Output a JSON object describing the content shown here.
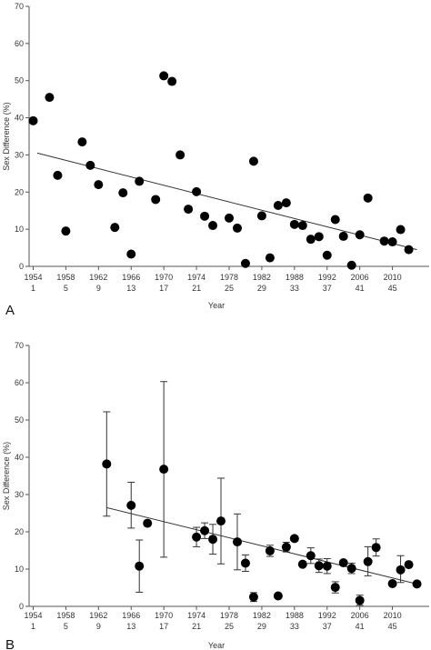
{
  "chart_data": [
    {
      "type": "scatter",
      "panel_label": "A",
      "xlabel": "Year",
      "ylabel": "Sex Difference (%)",
      "ylim": [
        0,
        70
      ],
      "yticks": [
        0,
        10,
        20,
        30,
        40,
        50,
        60,
        70
      ],
      "xlim": [
        0.5,
        49.5
      ],
      "xticks": [
        {
          "x": 1,
          "year": "1954",
          "index": "1"
        },
        {
          "x": 5,
          "year": "1958",
          "index": "5"
        },
        {
          "x": 9,
          "year": "1962",
          "index": "9"
        },
        {
          "x": 13,
          "year": "1966",
          "index": "13"
        },
        {
          "x": 17,
          "year": "1970",
          "index": "17"
        },
        {
          "x": 21,
          "year": "1974",
          "index": "21"
        },
        {
          "x": 25,
          "year": "1978",
          "index": "25"
        },
        {
          "x": 29,
          "year": "1982",
          "index": "29"
        },
        {
          "x": 33,
          "year": "1988",
          "index": "33"
        },
        {
          "x": 37,
          "year": "1992",
          "index": "37"
        },
        {
          "x": 41,
          "year": "2006",
          "index": "41"
        },
        {
          "x": 45,
          "year": "2010",
          "index": "45"
        }
      ],
      "points": [
        {
          "x": 1,
          "y": 39.2
        },
        {
          "x": 3,
          "y": 45.5
        },
        {
          "x": 4,
          "y": 24.5
        },
        {
          "x": 5,
          "y": 9.5
        },
        {
          "x": 7,
          "y": 33.5
        },
        {
          "x": 8,
          "y": 27.2
        },
        {
          "x": 9,
          "y": 22
        },
        {
          "x": 11,
          "y": 10.5
        },
        {
          "x": 12,
          "y": 19.8
        },
        {
          "x": 13,
          "y": 3.3
        },
        {
          "x": 14,
          "y": 22.9
        },
        {
          "x": 16,
          "y": 18
        },
        {
          "x": 17,
          "y": 51.3
        },
        {
          "x": 18,
          "y": 49.8
        },
        {
          "x": 19,
          "y": 30
        },
        {
          "x": 20,
          "y": 15.4
        },
        {
          "x": 21,
          "y": 20.1
        },
        {
          "x": 22,
          "y": 13.5
        },
        {
          "x": 23,
          "y": 11
        },
        {
          "x": 25,
          "y": 13
        },
        {
          "x": 26,
          "y": 10.3
        },
        {
          "x": 27,
          "y": 0.8
        },
        {
          "x": 28,
          "y": 28.3
        },
        {
          "x": 29,
          "y": 13.6
        },
        {
          "x": 30,
          "y": 2.3
        },
        {
          "x": 31,
          "y": 16.4
        },
        {
          "x": 32,
          "y": 17.1
        },
        {
          "x": 33,
          "y": 11.3
        },
        {
          "x": 34,
          "y": 11
        },
        {
          "x": 35,
          "y": 7.3
        },
        {
          "x": 36,
          "y": 8
        },
        {
          "x": 37,
          "y": 3
        },
        {
          "x": 38,
          "y": 12.6
        },
        {
          "x": 39,
          "y": 8.1
        },
        {
          "x": 40,
          "y": 0.3
        },
        {
          "x": 41,
          "y": 8.5
        },
        {
          "x": 42,
          "y": 18.4
        },
        {
          "x": 44,
          "y": 6.8
        },
        {
          "x": 45,
          "y": 6.6
        },
        {
          "x": 46,
          "y": 9.9
        },
        {
          "x": 47,
          "y": 4.5
        }
      ],
      "trendline": {
        "x": [
          1.5,
          48
        ],
        "y": [
          30.5,
          4.5
        ]
      }
    },
    {
      "type": "scatter",
      "panel_label": "B",
      "xlabel": "Year",
      "ylabel": "Sex Difference (%)",
      "ylim": [
        0,
        70
      ],
      "yticks": [
        0,
        10,
        20,
        30,
        40,
        50,
        60,
        70
      ],
      "xlim": [
        0.5,
        49.5
      ],
      "xticks": [
        {
          "x": 1,
          "year": "1954",
          "index": "1"
        },
        {
          "x": 5,
          "year": "1958",
          "index": "5"
        },
        {
          "x": 9,
          "year": "1962",
          "index": "9"
        },
        {
          "x": 13,
          "year": "1966",
          "index": "13"
        },
        {
          "x": 17,
          "year": "1970",
          "index": "17"
        },
        {
          "x": 21,
          "year": "1974",
          "index": "21"
        },
        {
          "x": 25,
          "year": "1978",
          "index": "25"
        },
        {
          "x": 29,
          "year": "1982",
          "index": "29"
        },
        {
          "x": 33,
          "year": "1988",
          "index": "33"
        },
        {
          "x": 37,
          "year": "1992",
          "index": "37"
        },
        {
          "x": 41,
          "year": "2006",
          "index": "41"
        },
        {
          "x": 45,
          "year": "2010",
          "index": "45"
        }
      ],
      "points": [
        {
          "x": 10,
          "y": 38.2,
          "lo": 24.2,
          "hi": 52.2
        },
        {
          "x": 13,
          "y": 27.1,
          "lo": 21,
          "hi": 33.3
        },
        {
          "x": 14,
          "y": 10.8,
          "lo": 3.8,
          "hi": 17.8
        },
        {
          "x": 15,
          "y": 22.3
        },
        {
          "x": 17,
          "y": 36.8,
          "lo": 13.2,
          "hi": 60.3
        },
        {
          "x": 21,
          "y": 18.6,
          "lo": 16,
          "hi": 21.2
        },
        {
          "x": 22,
          "y": 20.3,
          "lo": 18.2,
          "hi": 22.4
        },
        {
          "x": 23,
          "y": 18,
          "lo": 14,
          "hi": 22
        },
        {
          "x": 24,
          "y": 22.9,
          "lo": 11.4,
          "hi": 34.4
        },
        {
          "x": 26,
          "y": 17.3,
          "lo": 9.8,
          "hi": 24.8
        },
        {
          "x": 27,
          "y": 11.6,
          "lo": 9.4,
          "hi": 13.8
        },
        {
          "x": 28,
          "y": 2.5,
          "lo": 1.3,
          "hi": 3.7
        },
        {
          "x": 30,
          "y": 14.9,
          "lo": 13.4,
          "hi": 16.4
        },
        {
          "x": 31,
          "y": 2.8
        },
        {
          "x": 32,
          "y": 15.9,
          "lo": 14.6,
          "hi": 17.2
        },
        {
          "x": 33,
          "y": 18.2
        },
        {
          "x": 34,
          "y": 11.3
        },
        {
          "x": 35,
          "y": 13.6,
          "lo": 11.5,
          "hi": 15.7
        },
        {
          "x": 36,
          "y": 10.9,
          "lo": 9.1,
          "hi": 12.7
        },
        {
          "x": 37,
          "y": 10.8,
          "lo": 8.8,
          "hi": 12.8
        },
        {
          "x": 38,
          "y": 5.1,
          "lo": 3.6,
          "hi": 6.6
        },
        {
          "x": 39,
          "y": 11.7
        },
        {
          "x": 40,
          "y": 10.2,
          "lo": 8.8,
          "hi": 11.6
        },
        {
          "x": 41,
          "y": 1.6,
          "lo": 0.3,
          "hi": 3
        },
        {
          "x": 42,
          "y": 12,
          "lo": 8.2,
          "hi": 16
        },
        {
          "x": 43,
          "y": 15.8,
          "lo": 13.5,
          "hi": 18.1
        },
        {
          "x": 45,
          "y": 6.1
        },
        {
          "x": 46,
          "y": 9.8,
          "lo": 6.4,
          "hi": 13.6
        },
        {
          "x": 47,
          "y": 11.2
        },
        {
          "x": 48,
          "y": 6
        }
      ],
      "trendline": {
        "x": [
          10,
          48
        ],
        "y": [
          26.5,
          6
        ]
      }
    }
  ],
  "colors": {
    "marker": "#000000",
    "line": "#333333",
    "axis": "#555555",
    "text": "#333333"
  }
}
